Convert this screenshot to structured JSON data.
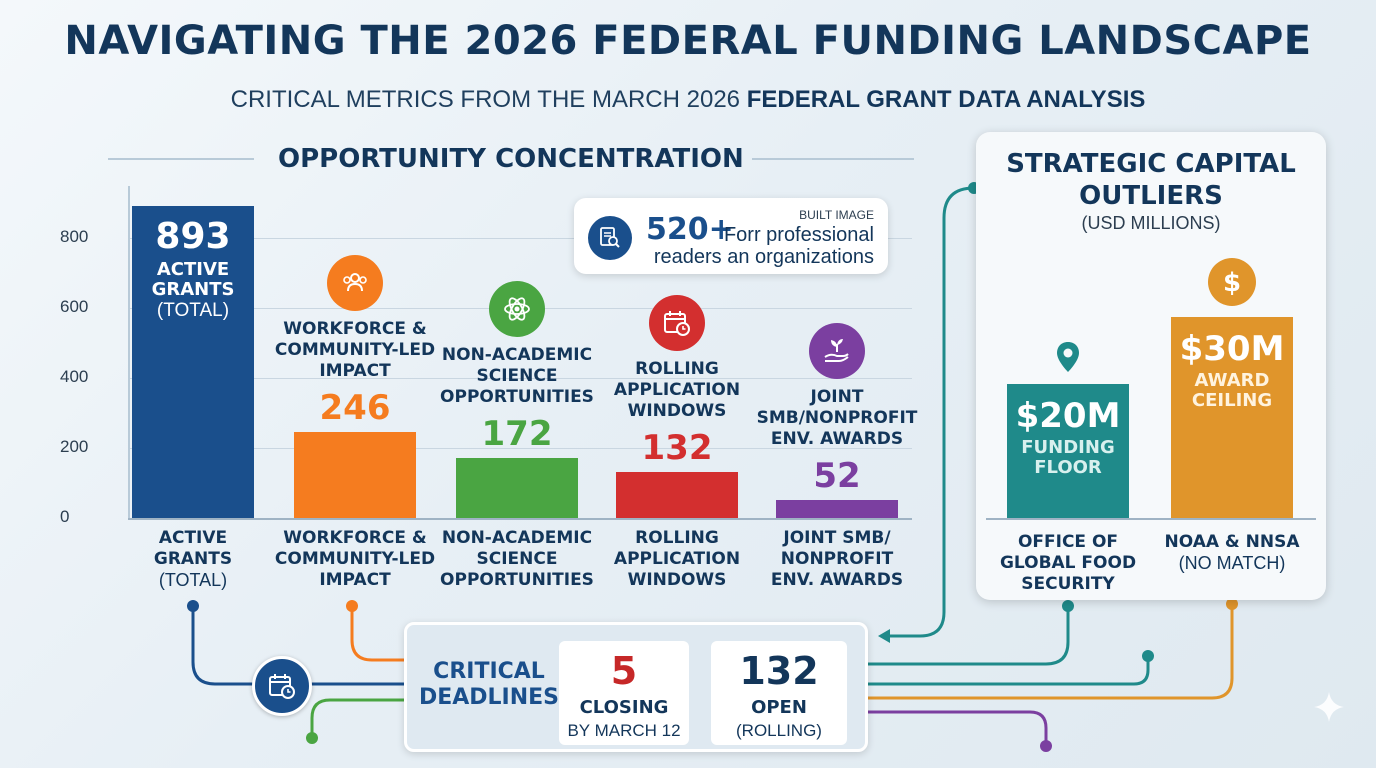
{
  "header": {
    "title": "NAVIGATING THE 2026 FEDERAL FUNDING LANDSCAPE",
    "subtitle_plain": "CRITICAL METRICS FROM THE MARCH 2026 ",
    "subtitle_bold": "FEDERAL GRANT DATA ANALYSIS"
  },
  "section": {
    "opportunity_title": "OPPORTUNITY CONCENTRATION"
  },
  "callout": {
    "tag": "BUILT IMAGE",
    "value": "520+",
    "line1": "Forr professional",
    "line2": "readers an organizations",
    "icon": "document-search-icon"
  },
  "chart_data": [
    {
      "type": "bar",
      "title": "OPPORTUNITY CONCENTRATION",
      "categories": [
        "ACTIVE GRANTS (TOTAL)",
        "WORKFORCE & COMMUNITY-LED IMPACT",
        "NON-ACADEMIC SCIENCE OPPORTUNITIES",
        "ROLLING APPLICATION WINDOWS",
        "JOINT SMB/NONPROFIT ENV. AWARDS"
      ],
      "values": [
        893,
        246,
        172,
        132,
        52
      ],
      "ylim": [
        0,
        950
      ],
      "yticks": [
        "0",
        "200",
        "400",
        "600",
        "800"
      ],
      "ytick_values": [
        0,
        200,
        400,
        600,
        800
      ],
      "colors": [
        "#1a4f8c",
        "#f57c1f",
        "#4aa542",
        "#d32f2f",
        "#7b3fa0"
      ],
      "value_labels": [
        "893",
        "246",
        "172",
        "132",
        "52"
      ],
      "first_bar_text": {
        "line1": "ACTIVE",
        "line2": "GRANTS",
        "line3": "(TOTAL)"
      },
      "category_heads": [
        {
          "lines": [
            "WORKFORCE &",
            "COMMUNITY-LED",
            "IMPACT"
          ],
          "icon": "people-group-icon"
        },
        {
          "lines": [
            "NON-ACADEMIC",
            "SCIENCE",
            "OPPORTUNITIES"
          ],
          "icon": "atom-icon"
        },
        {
          "lines": [
            "ROLLING",
            "APPLICATION",
            "WINDOWS"
          ],
          "icon": "calendar-clock-icon"
        },
        {
          "lines": [
            "JOINT",
            "SMB/NONPROFIT",
            "ENV. AWARDS"
          ],
          "icon": "hand-plant-icon"
        }
      ],
      "x_labels": [
        {
          "lines": [
            "ACTIVE",
            "GRANTS"
          ],
          "paren": "(TOTAL)"
        },
        {
          "lines": [
            "WORKFORCE &",
            "COMMUNITY-LED",
            "IMPACT"
          ]
        },
        {
          "lines": [
            "NON-ACADEMIC",
            "SCIENCE",
            "OPPORTUNITIES"
          ]
        },
        {
          "lines": [
            "ROLLING",
            "APPLICATION",
            "WINDOWS"
          ]
        },
        {
          "lines": [
            "JOINT SMB/",
            "NONPROFIT",
            "ENV. AWARDS"
          ]
        }
      ]
    },
    {
      "type": "bar",
      "title": "STRATEGIC CAPITAL OUTLIERS",
      "subtitle": "(USD MILLIONS)",
      "categories": [
        "OFFICE OF GLOBAL FOOD SECURITY",
        "NOAA & NNSA (NO MATCH)"
      ],
      "values": [
        20,
        30
      ],
      "ylim": [
        0,
        34
      ],
      "colors": [
        "#1f8a8a",
        "#e0952b"
      ],
      "bar_values": [
        "$20M",
        "$30M"
      ],
      "bar_notes": [
        [
          "FUNDING",
          "FLOOR"
        ],
        [
          "AWARD",
          "CEILING"
        ]
      ],
      "icons": [
        "map-pin-icon",
        "dollar-sign-icon"
      ],
      "x_labels": [
        {
          "lines": [
            "OFFICE OF",
            "GLOBAL FOOD",
            "SECURITY"
          ]
        },
        {
          "lines": [
            "NOAA & NNSA"
          ],
          "paren": "(NO MATCH)"
        }
      ]
    }
  ],
  "panel": {
    "title_line1": "STRATEGIC CAPITAL",
    "title_line2": "OUTLIERS",
    "subtitle": "(USD MILLIONS)"
  },
  "deadlines": {
    "label_line1": "CRITICAL",
    "label_line2": "DEADLINES",
    "icon": "calendar-clock-icon",
    "closing": {
      "value": "5",
      "label": "CLOSING",
      "sub": "BY MARCH 12"
    },
    "open": {
      "value": "132",
      "label": "OPEN",
      "sub": "(ROLLING)"
    }
  },
  "colors": {
    "navy": "#13365a",
    "blue": "#1a4f8c",
    "orange": "#f57c1f",
    "green": "#4aa542",
    "red": "#d32f2f",
    "purple": "#7b3fa0",
    "teal": "#1f8a8a",
    "gold": "#e0952b"
  }
}
